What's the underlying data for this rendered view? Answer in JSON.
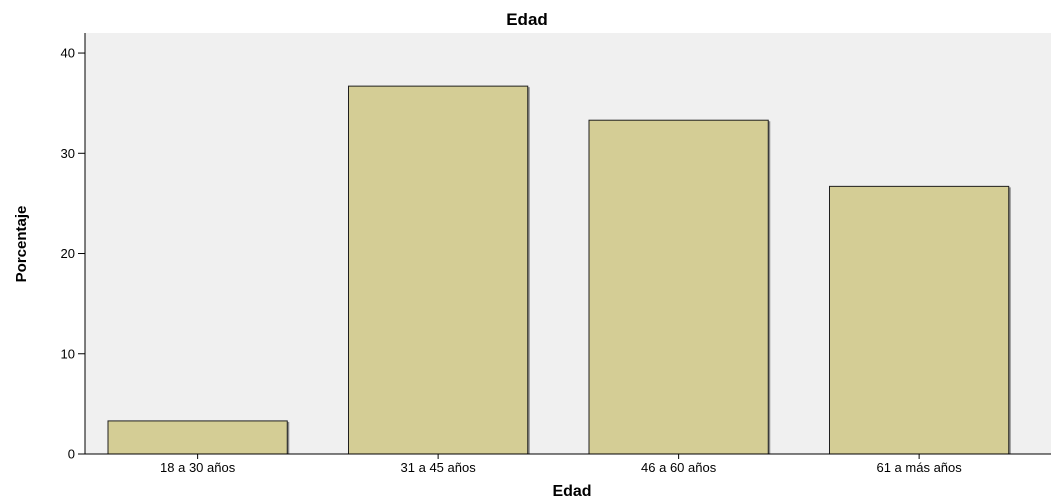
{
  "chart_data": {
    "type": "bar",
    "title": "Edad",
    "xlabel": "Edad",
    "ylabel": "Porcentaje",
    "categories": [
      "18 a 30 años",
      "31 a 45 años",
      "46 a 60 años",
      "61 a más años"
    ],
    "values": [
      3.3,
      36.7,
      33.3,
      26.7
    ],
    "ylim": [
      0,
      42
    ],
    "yticks": [
      0,
      10,
      20,
      30,
      40
    ],
    "grid": false,
    "legend": "none",
    "colors": {
      "bar_fill": "#d4cd95",
      "bar_stroke": "#1f1f1f",
      "plot_background": "#f0f0f0",
      "page_background": "#ffffff"
    }
  }
}
